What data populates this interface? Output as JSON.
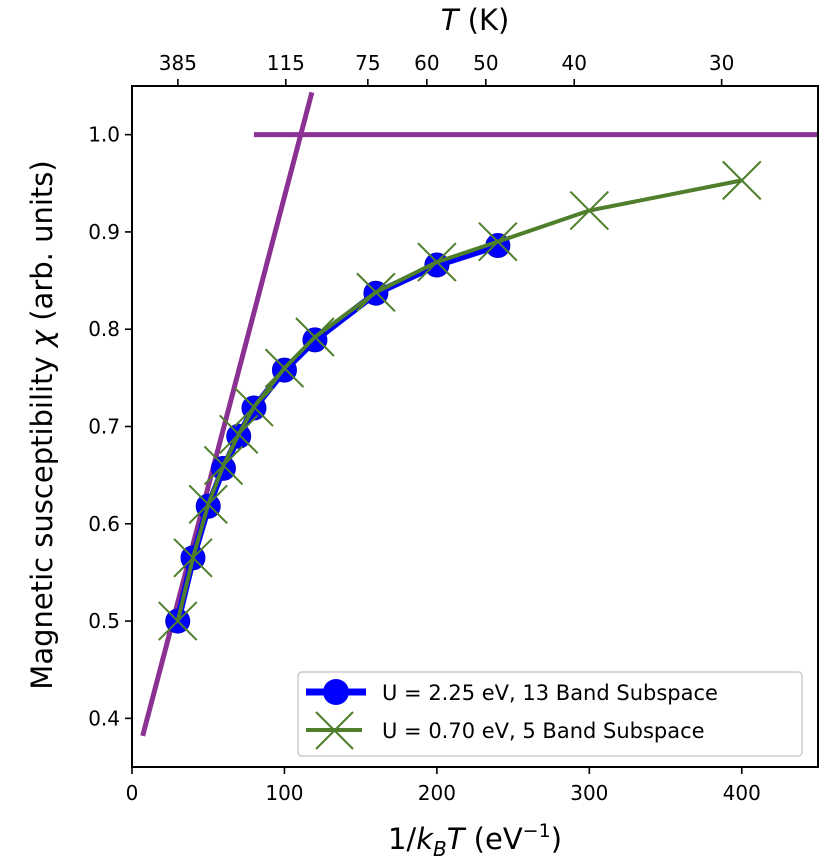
{
  "chart_data": {
    "type": "line",
    "title": "",
    "xlabel": {
      "prefix": "1/",
      "k": "k",
      "sub": "B",
      "T": "T",
      "unit_open": " (eV",
      "sup": "−1",
      "unit_close": ")"
    },
    "ylabel": {
      "text": "Magnetic susceptibility ",
      "chi": "χ",
      "unit": " (arb. units)"
    },
    "top_xlabel": {
      "T": "T",
      "unit": " (K)"
    },
    "xlim": [
      0,
      450
    ],
    "ylim": [
      0.35,
      1.05
    ],
    "grid": false,
    "x_ticks": [
      0,
      100,
      200,
      300,
      400
    ],
    "x_tick_labels": [
      "0",
      "100",
      "200",
      "300",
      "400"
    ],
    "y_ticks": [
      0.4,
      0.5,
      0.6,
      0.7,
      0.8,
      0.9,
      1.0
    ],
    "y_tick_labels": [
      "0.4",
      "0.5",
      "0.6",
      "0.7",
      "0.8",
      "0.9",
      "1.0"
    ],
    "top_ticks": [
      30.1,
      100.9,
      154.7,
      193.4,
      232.1,
      290.1,
      386.8
    ],
    "top_tick_labels": [
      "385",
      "115",
      "75",
      "60",
      "50",
      "40",
      "30"
    ],
    "series": [
      {
        "name": "U = 2.25 eV, 13 Band Subspace",
        "color": "#0000ff",
        "marker": "circle",
        "x": [
          30,
          40,
          50,
          60,
          70,
          80,
          100,
          120,
          160,
          200,
          240
        ],
        "y": [
          0.5,
          0.565,
          0.618,
          0.657,
          0.69,
          0.719,
          0.758,
          0.789,
          0.837,
          0.866,
          0.886
        ]
      },
      {
        "name": "U = 0.70 eV, 5 Band Subspace",
        "color": "#4f7f2a",
        "marker": "x",
        "x": [
          30,
          40,
          50,
          60,
          70,
          80,
          100,
          120,
          160,
          200,
          240,
          300,
          400
        ],
        "y": [
          0.5,
          0.565,
          0.62,
          0.66,
          0.692,
          0.72,
          0.76,
          0.792,
          0.838,
          0.869,
          0.89,
          0.922,
          0.953
        ]
      }
    ],
    "reference_lines": [
      {
        "name": "high-temperature-fit",
        "color": "#8b3193",
        "x": [
          7,
          118
        ],
        "y": [
          0.382,
          1.0435
        ]
      },
      {
        "name": "saturation-line",
        "color": "#8b3193",
        "x": [
          80,
          450
        ],
        "y": [
          1.0,
          1.0
        ]
      }
    ],
    "legend": {
      "placement": "bottom-right"
    }
  }
}
